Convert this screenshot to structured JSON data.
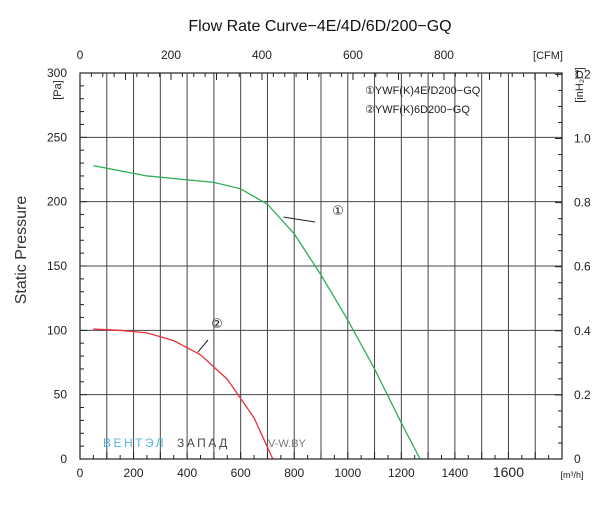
{
  "chart_data": {
    "type": "line",
    "title": "Flow Rate Curve−4E/4D/6D/200−GQ",
    "ylabel": "Static  Pressure",
    "y_unit": "[Pa]",
    "x_unit": "[m³/h]",
    "top_axis_unit": "[CFM]",
    "right_axis_unit": "[inH₂O]",
    "xlim": [
      0,
      1800
    ],
    "ylim": [
      0,
      300
    ],
    "x_ticks": [
      "0",
      "200",
      "400",
      "600",
      "800",
      "1000",
      "1200",
      "1400",
      "1600"
    ],
    "y_ticks": [
      "0",
      "50",
      "100",
      "150",
      "200",
      "250",
      "300"
    ],
    "top_ticks": [
      "0",
      "200",
      "400",
      "600",
      "800"
    ],
    "right_ticks": [
      "0",
      "0.2",
      "0.4",
      "0.6",
      "0.8",
      "1.0",
      "1.2"
    ],
    "grid": true,
    "legend": [
      {
        "label": "①YWF(K)4E/D200−GQ"
      },
      {
        "label": "②YWF(K)6D200−GQ"
      }
    ],
    "series": [
      {
        "marker": "①",
        "color": "#2fae57",
        "x": [
          50,
          250,
          500,
          600,
          700,
          800,
          900,
          1000,
          1100,
          1200,
          1270
        ],
        "y": [
          228,
          220,
          215,
          210,
          198,
          175,
          143,
          108,
          70,
          28,
          0
        ]
      },
      {
        "marker": "②",
        "color": "#e8323a",
        "x": [
          50,
          150,
          250,
          350,
          450,
          550,
          650,
          720
        ],
        "y": [
          101,
          100,
          98,
          92,
          81,
          62,
          32,
          0
        ]
      }
    ],
    "watermark": {
      "part1": "ВЕНТЭЛ",
      "part2": "ЗАПАД",
      "part3": "V-W.BY"
    }
  }
}
